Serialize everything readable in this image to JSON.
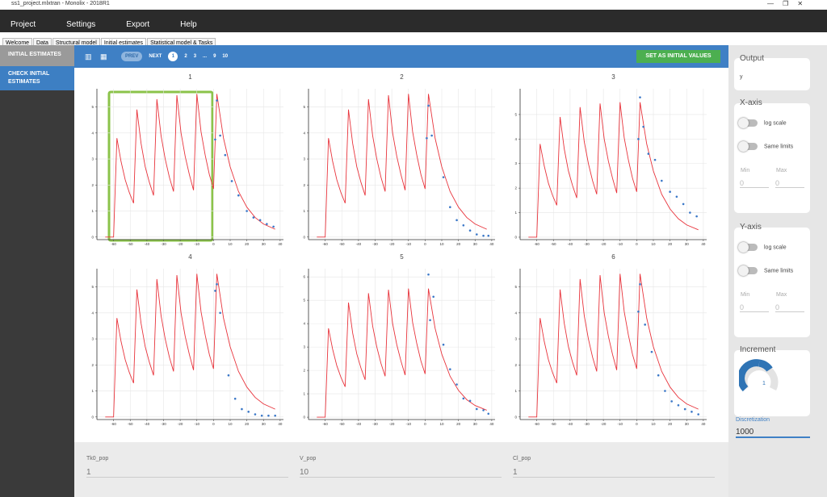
{
  "window": {
    "title": "ss1_project.mlxtran - Monolix - 2018R1"
  },
  "menu": [
    "Project",
    "Settings",
    "Export",
    "Help"
  ],
  "tabs": [
    "Welcome",
    "Data",
    "Structural model",
    "Initial estimates",
    "Statistical model & Tasks"
  ],
  "sidebar": [
    "INITIAL ESTIMATES",
    "CHECK INITIAL ESTIMATES"
  ],
  "toolbar": {
    "pager": [
      "PREV",
      "NEXT",
      "1",
      "2",
      "3",
      "...",
      "9",
      "10"
    ],
    "button": "SET AS INITIAL VALUES"
  },
  "panel": {
    "output": {
      "label": "Output",
      "value": "y"
    },
    "x_axis": {
      "label": "X-axis",
      "log": "log scale",
      "same": "Same limits",
      "min": "Min",
      "max": "Max",
      "min_value": "0",
      "max_value": "0"
    },
    "y_axis": {
      "label": "Y-axis",
      "log": "log scale",
      "same": "Same limits",
      "min": "Min",
      "max": "Max",
      "min_value": "0",
      "max_value": "0"
    },
    "increment": {
      "label": "Increment",
      "value": "1"
    },
    "discretization": {
      "label": "Discretization",
      "value": "1000"
    }
  },
  "parameters": [
    {
      "name": "Tk0_pop",
      "value": "1"
    },
    {
      "name": "V_pop",
      "value": "10"
    },
    {
      "name": "Cl_pop",
      "value": "1"
    }
  ],
  "chart_data": [
    {
      "type": "line",
      "title": "1",
      "xlim": [
        -70,
        42
      ],
      "xticks": [
        -60,
        -50,
        -40,
        -30,
        -20,
        -10,
        0,
        10,
        20,
        30,
        40
      ],
      "ylim": [
        -0.1,
        5.7
      ],
      "yticks": [
        0,
        1,
        2,
        3,
        4,
        5
      ],
      "grid": true,
      "series": [
        {
          "type": "line",
          "color": "#e8343c",
          "x": [
            -65,
            -60,
            -58,
            -55.5,
            -53,
            -50.5,
            -48,
            -46,
            -43.5,
            -41,
            -38.5,
            -36,
            -34,
            -31.5,
            -29,
            -26.5,
            -24,
            -22,
            -19.5,
            -17,
            -14.5,
            -12,
            -10,
            -7.5,
            -5,
            -2.5,
            0,
            2,
            6,
            10,
            15,
            20,
            25,
            30,
            37
          ],
          "values": [
            0,
            0,
            3.8,
            2.9,
            2.2,
            1.7,
            1.3,
            4.9,
            3.6,
            2.7,
            2.1,
            1.6,
            5.3,
            3.9,
            3.0,
            2.3,
            1.75,
            5.45,
            4.0,
            3.1,
            2.4,
            1.8,
            5.5,
            4.05,
            3.15,
            2.4,
            1.85,
            5.5,
            3.8,
            2.7,
            1.75,
            1.15,
            0.75,
            0.5,
            0.3
          ]
        },
        {
          "type": "scatter",
          "color": "#3b78c8",
          "x": [
            1,
            2,
            4,
            7,
            11,
            15,
            20,
            24,
            28,
            32,
            36
          ],
          "values": [
            3.75,
            5.25,
            3.9,
            3.15,
            2.15,
            1.6,
            1.0,
            0.75,
            0.65,
            0.5,
            0.4
          ]
        }
      ]
    },
    {
      "type": "line",
      "title": "2",
      "xlim": [
        -70,
        42
      ],
      "xticks": [
        -60,
        -50,
        -40,
        -30,
        -20,
        -10,
        0,
        10,
        20,
        30,
        40
      ],
      "ylim": [
        -0.1,
        5.7
      ],
      "yticks": [
        0,
        1,
        2,
        3,
        4,
        5
      ],
      "grid": true,
      "series": [
        {
          "type": "line",
          "color": "#e8343c",
          "x": [
            -65,
            -60,
            -58,
            -55.5,
            -53,
            -50.5,
            -48,
            -46,
            -43.5,
            -41,
            -38.5,
            -36,
            -34,
            -31.5,
            -29,
            -26.5,
            -24,
            -22,
            -19.5,
            -17,
            -14.5,
            -12,
            -10,
            -7.5,
            -5,
            -2.5,
            0,
            2,
            6,
            10,
            15,
            20,
            25,
            30,
            37
          ],
          "values": [
            0,
            0,
            3.8,
            2.9,
            2.2,
            1.7,
            1.3,
            4.9,
            3.6,
            2.7,
            2.1,
            1.6,
            5.3,
            3.9,
            3.0,
            2.3,
            1.75,
            5.45,
            4.0,
            3.1,
            2.4,
            1.8,
            5.5,
            4.05,
            3.15,
            2.4,
            1.85,
            5.5,
            3.8,
            2.7,
            1.75,
            1.15,
            0.75,
            0.5,
            0.3
          ]
        },
        {
          "type": "scatter",
          "color": "#3b78c8",
          "x": [
            1,
            2,
            4,
            11,
            15,
            19,
            23,
            27,
            31,
            35,
            38
          ],
          "values": [
            3.8,
            5.05,
            3.9,
            2.3,
            1.15,
            0.65,
            0.45,
            0.25,
            0.1,
            0.05,
            0.05
          ]
        }
      ]
    },
    {
      "type": "line",
      "title": "3",
      "xlim": [
        -70,
        42
      ],
      "xticks": [
        -60,
        -50,
        -40,
        -30,
        -20,
        -10,
        0,
        10,
        20,
        30,
        40
      ],
      "ylim": [
        -0.1,
        6.05
      ],
      "yticks": [
        0,
        1,
        2,
        3,
        4,
        5
      ],
      "grid": true,
      "series": [
        {
          "type": "line",
          "color": "#e8343c",
          "x": [
            -65,
            -60,
            -58,
            -55.5,
            -53,
            -50.5,
            -48,
            -46,
            -43.5,
            -41,
            -38.5,
            -36,
            -34,
            -31.5,
            -29,
            -26.5,
            -24,
            -22,
            -19.5,
            -17,
            -14.5,
            -12,
            -10,
            -7.5,
            -5,
            -2.5,
            0,
            2,
            6,
            10,
            15,
            20,
            25,
            30,
            37
          ],
          "values": [
            0,
            0,
            3.8,
            2.9,
            2.2,
            1.7,
            1.3,
            4.9,
            3.6,
            2.7,
            2.1,
            1.6,
            5.3,
            3.9,
            3.0,
            2.3,
            1.75,
            5.45,
            4.0,
            3.1,
            2.4,
            1.8,
            5.5,
            4.05,
            3.15,
            2.4,
            1.85,
            5.5,
            3.8,
            2.7,
            1.75,
            1.15,
            0.75,
            0.5,
            0.3
          ]
        },
        {
          "type": "scatter",
          "color": "#3b78c8",
          "x": [
            1,
            2,
            4,
            7,
            11,
            15,
            20,
            24,
            28,
            32,
            36
          ],
          "values": [
            4.0,
            5.7,
            4.5,
            3.4,
            3.15,
            2.3,
            1.85,
            1.65,
            1.35,
            1.0,
            0.85
          ]
        }
      ]
    },
    {
      "type": "line",
      "title": "4",
      "xlim": [
        -70,
        42
      ],
      "xticks": [
        -60,
        -50,
        -40,
        -30,
        -20,
        -10,
        0,
        10,
        20,
        30,
        40
      ],
      "ylim": [
        -0.1,
        5.7
      ],
      "yticks": [
        0,
        1,
        2,
        3,
        4,
        5
      ],
      "grid": true,
      "series": [
        {
          "type": "line",
          "color": "#e8343c",
          "x": [
            -65,
            -60,
            -58,
            -55.5,
            -53,
            -50.5,
            -48,
            -46,
            -43.5,
            -41,
            -38.5,
            -36,
            -34,
            -31.5,
            -29,
            -26.5,
            -24,
            -22,
            -19.5,
            -17,
            -14.5,
            -12,
            -10,
            -7.5,
            -5,
            -2.5,
            0,
            2,
            6,
            10,
            15,
            20,
            25,
            30,
            37
          ],
          "values": [
            0,
            0,
            3.8,
            2.9,
            2.2,
            1.7,
            1.3,
            4.9,
            3.6,
            2.7,
            2.1,
            1.6,
            5.3,
            3.9,
            3.0,
            2.3,
            1.75,
            5.45,
            4.0,
            3.1,
            2.4,
            1.8,
            5.5,
            4.05,
            3.15,
            2.4,
            1.85,
            5.5,
            3.8,
            2.7,
            1.75,
            1.15,
            0.75,
            0.5,
            0.3
          ]
        },
        {
          "type": "scatter",
          "color": "#3b78c8",
          "x": [
            1,
            2,
            4,
            9,
            13,
            17,
            21,
            25,
            29,
            33,
            37
          ],
          "values": [
            4.85,
            5.1,
            4.0,
            1.6,
            0.7,
            0.3,
            0.2,
            0.1,
            0.05,
            0.05,
            0.05
          ]
        }
      ]
    },
    {
      "type": "line",
      "title": "5",
      "xlim": [
        -70,
        42
      ],
      "xticks": [
        -60,
        -50,
        -40,
        -30,
        -20,
        -10,
        0,
        10,
        20,
        30,
        40
      ],
      "ylim": [
        -0.1,
        6.35
      ],
      "yticks": [
        0,
        1,
        2,
        3,
        4,
        5,
        6
      ],
      "grid": true,
      "series": [
        {
          "type": "line",
          "color": "#e8343c",
          "x": [
            -65,
            -60,
            -58,
            -55.5,
            -53,
            -50.5,
            -48,
            -46,
            -43.5,
            -41,
            -38.5,
            -36,
            -34,
            -31.5,
            -29,
            -26.5,
            -24,
            -22,
            -19.5,
            -17,
            -14.5,
            -12,
            -10,
            -7.5,
            -5,
            -2.5,
            0,
            2,
            6,
            10,
            15,
            20,
            25,
            30,
            37
          ],
          "values": [
            0,
            0,
            3.8,
            2.9,
            2.2,
            1.7,
            1.3,
            4.9,
            3.6,
            2.7,
            2.1,
            1.6,
            5.3,
            3.9,
            3.0,
            2.3,
            1.75,
            5.45,
            4.0,
            3.1,
            2.4,
            1.8,
            5.5,
            4.05,
            3.15,
            2.4,
            1.85,
            5.5,
            3.8,
            2.7,
            1.75,
            1.15,
            0.75,
            0.5,
            0.3
          ]
        },
        {
          "type": "scatter",
          "color": "#3b78c8",
          "x": [
            2,
            3,
            5,
            11,
            15,
            19,
            23,
            27,
            31,
            35,
            38
          ],
          "values": [
            6.1,
            4.15,
            5.15,
            3.1,
            2.05,
            1.4,
            0.8,
            0.7,
            0.35,
            0.3,
            0.15
          ]
        }
      ]
    },
    {
      "type": "line",
      "title": "6",
      "xlim": [
        -70,
        42
      ],
      "xticks": [
        -60,
        -50,
        -40,
        -30,
        -20,
        -10,
        0,
        10,
        20,
        30,
        40
      ],
      "ylim": [
        -0.1,
        5.7
      ],
      "yticks": [
        0,
        1,
        2,
        3,
        4,
        5
      ],
      "grid": true,
      "series": [
        {
          "type": "line",
          "color": "#e8343c",
          "x": [
            -65,
            -60,
            -58,
            -55.5,
            -53,
            -50.5,
            -48,
            -46,
            -43.5,
            -41,
            -38.5,
            -36,
            -34,
            -31.5,
            -29,
            -26.5,
            -24,
            -22,
            -19.5,
            -17,
            -14.5,
            -12,
            -10,
            -7.5,
            -5,
            -2.5,
            0,
            2,
            6,
            10,
            15,
            20,
            25,
            30,
            37
          ],
          "values": [
            0,
            0,
            3.8,
            2.9,
            2.2,
            1.7,
            1.3,
            4.9,
            3.6,
            2.7,
            2.1,
            1.6,
            5.3,
            3.9,
            3.0,
            2.3,
            1.75,
            5.45,
            4.0,
            3.1,
            2.4,
            1.8,
            5.5,
            4.05,
            3.15,
            2.4,
            1.85,
            5.5,
            3.8,
            2.7,
            1.75,
            1.15,
            0.75,
            0.5,
            0.3
          ]
        },
        {
          "type": "scatter",
          "color": "#3b78c8",
          "x": [
            1,
            2,
            5,
            9,
            13,
            17,
            21,
            25,
            29,
            33,
            37
          ],
          "values": [
            4.05,
            5.1,
            3.55,
            2.5,
            1.6,
            1.0,
            0.6,
            0.45,
            0.3,
            0.2,
            0.1
          ]
        }
      ]
    }
  ]
}
